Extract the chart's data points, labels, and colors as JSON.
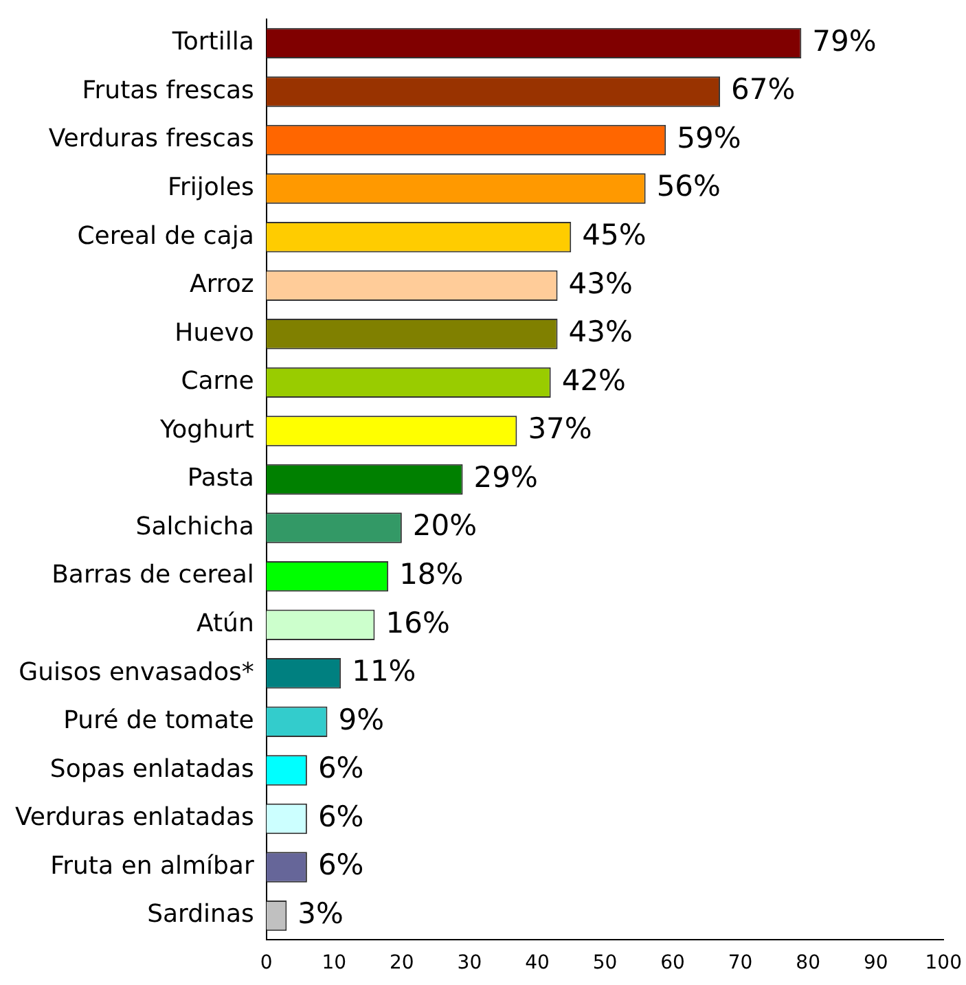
{
  "chart_data": {
    "type": "bar",
    "orientation": "horizontal",
    "categories": [
      "Tortilla",
      "Frutas frescas",
      "Verduras frescas",
      "Frijoles",
      "Cereal de caja",
      "Arroz",
      "Huevo",
      "Carne",
      "Yoghurt",
      "Pasta",
      "Salchicha",
      "Barras de cereal",
      "Atún",
      "Guisos envasados*",
      "Puré de tomate",
      "Sopas enlatadas",
      "Verduras enlatadas",
      "Fruta en almíbar",
      "Sardinas"
    ],
    "values": [
      79,
      67,
      59,
      56,
      45,
      43,
      43,
      42,
      37,
      29,
      20,
      18,
      16,
      11,
      9,
      6,
      6,
      6,
      3
    ],
    "value_labels": [
      "79%",
      "67%",
      "59%",
      "56%",
      "45%",
      "43%",
      "43%",
      "42%",
      "37%",
      "29%",
      "20%",
      "18%",
      "16%",
      "11%",
      "9%",
      "6%",
      "6%",
      "6%",
      "3%"
    ],
    "colors": [
      "#800000",
      "#993300",
      "#ff6600",
      "#ff9900",
      "#ffcc00",
      "#ffcc99",
      "#808000",
      "#99cc00",
      "#ffff00",
      "#008000",
      "#339966",
      "#00ff00",
      "#ccffcc",
      "#008080",
      "#33cccc",
      "#00ffff",
      "#ccffff",
      "#666699",
      "#c0c0c0"
    ],
    "xlim": [
      0,
      100
    ],
    "xticks": [
      0,
      10,
      20,
      30,
      40,
      50,
      60,
      70,
      80,
      90,
      100
    ],
    "grid": false,
    "legend": false
  }
}
